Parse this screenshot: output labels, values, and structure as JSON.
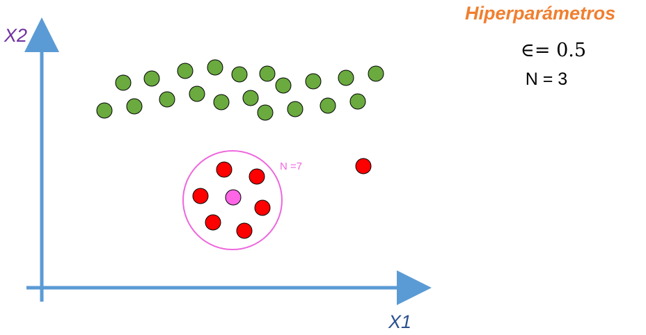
{
  "axes": {
    "x_label": "X1",
    "y_label": "X2",
    "color": "#5b9bd5"
  },
  "hyperparameters": {
    "title": "Hiperparámetros",
    "epsilon_text": "∈= 0.5",
    "n_text": "N = 3",
    "title_color": "#f07f2f"
  },
  "neighborhood": {
    "label": "N =7",
    "circle_color": "#ee66dd",
    "core_color": "#ff66e6"
  },
  "colors": {
    "green": "#6aaa3f",
    "red": "#ff0000",
    "outline": "#000000"
  }
}
